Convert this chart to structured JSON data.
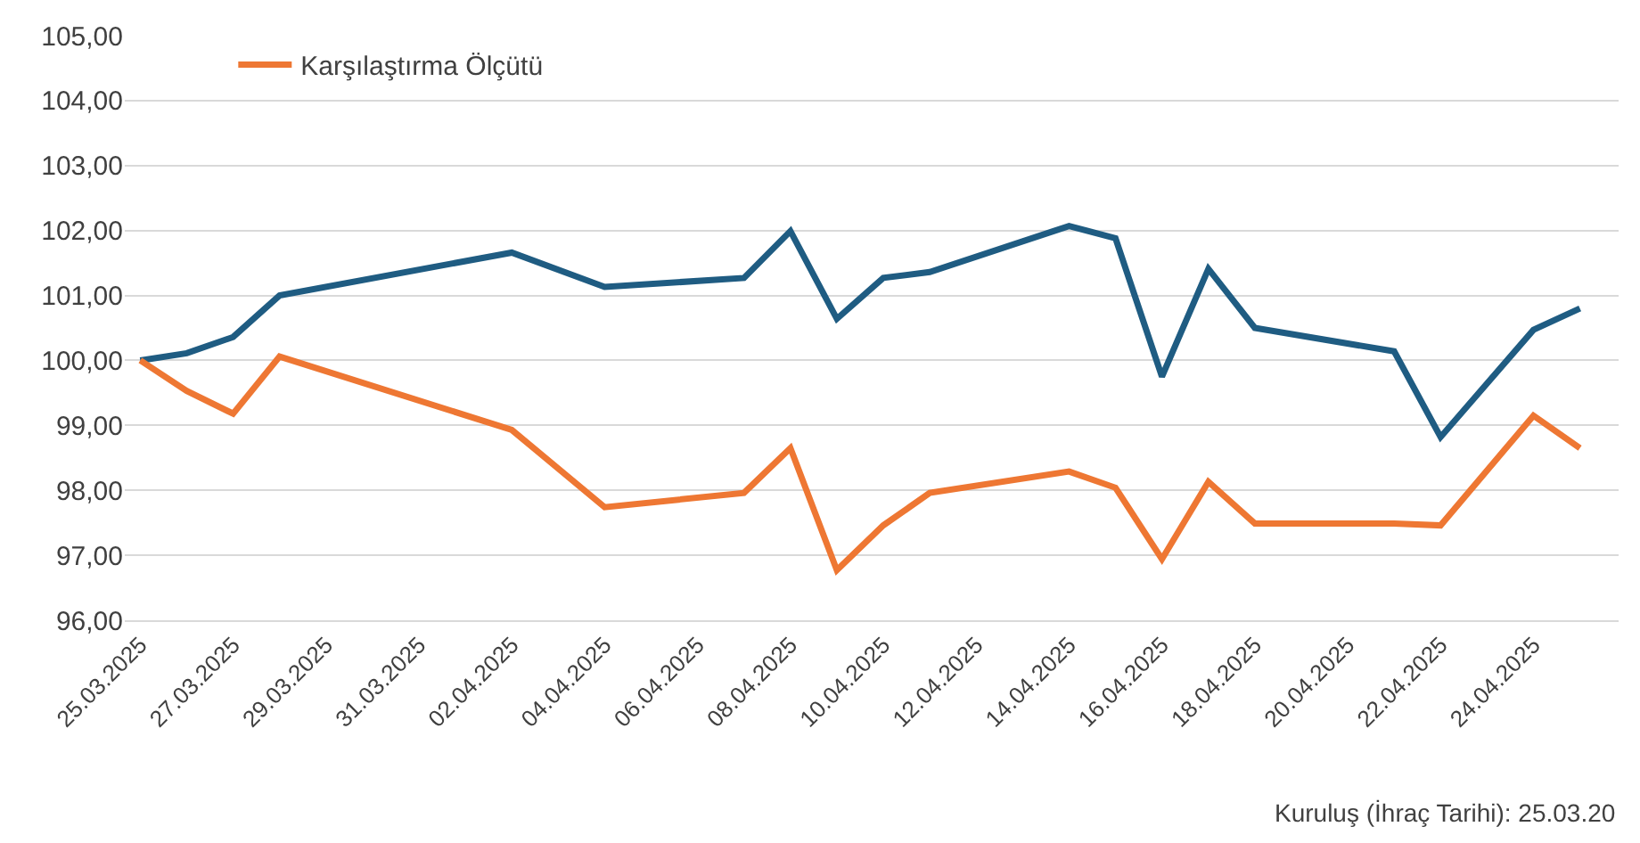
{
  "chart_data": {
    "type": "line",
    "x": [
      "2025-03-25",
      "2025-03-26",
      "2025-03-27",
      "2025-03-28",
      "2025-04-02",
      "2025-04-04",
      "2025-04-07",
      "2025-04-08",
      "2025-04-09",
      "2025-04-10",
      "2025-04-11",
      "2025-04-14",
      "2025-04-15",
      "2025-04-16",
      "2025-04-17",
      "2025-04-18",
      "2025-04-21",
      "2025-04-22",
      "2025-04-24",
      "2025-04-25"
    ],
    "series": [
      {
        "color": "#1f5c82",
        "values": [
          100.0,
          100.11,
          100.36,
          101.0,
          101.66,
          101.13,
          101.27,
          101.99,
          100.64,
          101.27,
          101.36,
          102.07,
          101.88,
          99.75,
          101.41,
          100.5,
          100.14,
          98.82,
          100.47,
          100.8
        ]
      },
      {
        "name": "Karşılaştırma Ölçütü",
        "color": "#ee7733",
        "values": [
          100.0,
          99.53,
          99.18,
          100.06,
          98.93,
          97.74,
          97.96,
          98.65,
          96.77,
          97.46,
          97.96,
          98.29,
          98.04,
          96.94,
          98.13,
          97.49,
          97.49,
          97.46,
          99.15,
          98.65
        ]
      }
    ],
    "xlim": [
      "2025-03-24T16:00",
      "2025-04-25T20:00"
    ],
    "xticks": [
      {
        "value": "2025-03-25",
        "label": "25.03.2025"
      },
      {
        "value": "2025-03-27",
        "label": "27.03.2025"
      },
      {
        "value": "2025-03-29",
        "label": "29.03.2025"
      },
      {
        "value": "2025-03-31",
        "label": "31.03.2025"
      },
      {
        "value": "2025-04-02",
        "label": "02.04.2025"
      },
      {
        "value": "2025-04-04",
        "label": "04.04.2025"
      },
      {
        "value": "2025-04-06",
        "label": "06.04.2025"
      },
      {
        "value": "2025-04-08",
        "label": "08.04.2025"
      },
      {
        "value": "2025-04-10",
        "label": "10.04.2025"
      },
      {
        "value": "2025-04-12",
        "label": "12.04.2025"
      },
      {
        "value": "2025-04-14",
        "label": "14.04.2025"
      },
      {
        "value": "2025-04-16",
        "label": "16.04.2025"
      },
      {
        "value": "2025-04-18",
        "label": "18.04.2025"
      },
      {
        "value": "2025-04-20",
        "label": "20.04.2025"
      },
      {
        "value": "2025-04-22",
        "label": "22.04.2025"
      },
      {
        "value": "2025-04-24",
        "label": "24.04.2025"
      }
    ],
    "ylim": [
      96,
      105
    ],
    "yticks": [
      {
        "value": 96,
        "label": "96,00"
      },
      {
        "value": 97,
        "label": "97,00"
      },
      {
        "value": 98,
        "label": "98,00"
      },
      {
        "value": 99,
        "label": "99,00"
      },
      {
        "value": 100,
        "label": "100,00"
      },
      {
        "value": 101,
        "label": "101,00"
      },
      {
        "value": 102,
        "label": "102,00"
      },
      {
        "value": 103,
        "label": "103,00"
      },
      {
        "value": 104,
        "label": "104,00"
      },
      {
        "value": 105,
        "label": "105,00"
      }
    ],
    "grid": "y",
    "legend": "top left",
    "marker": "none",
    "line_style": "solid",
    "annotations": [
      "Kuruluş (İhraç Tarihi): 25.03.20"
    ]
  }
}
